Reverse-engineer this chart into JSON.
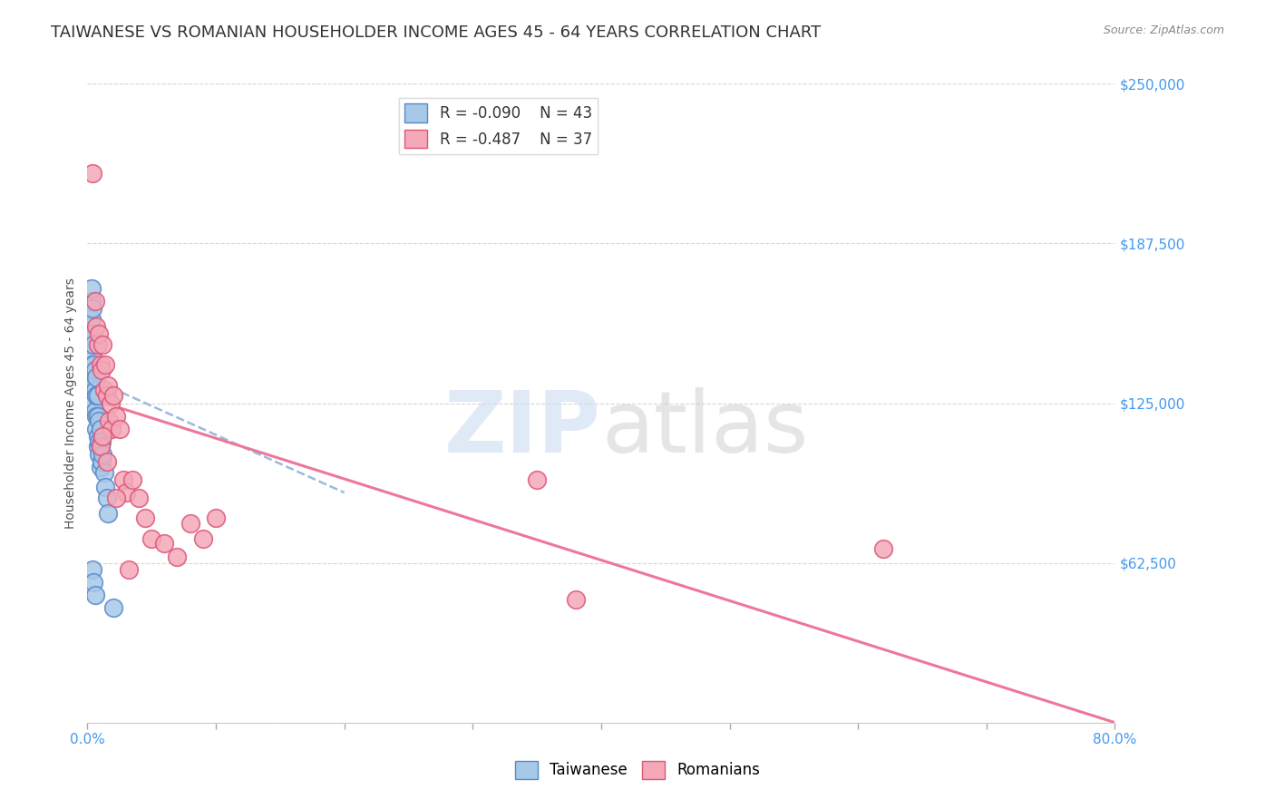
{
  "title": "TAIWANESE VS ROMANIAN HOUSEHOLDER INCOME AGES 45 - 64 YEARS CORRELATION CHART",
  "source": "Source: ZipAtlas.com",
  "ylabel": "Householder Income Ages 45 - 64 years",
  "xlim": [
    0.0,
    0.8
  ],
  "ylim": [
    0,
    250000
  ],
  "yticks": [
    0,
    62500,
    125000,
    187500,
    250000
  ],
  "ytick_labels": [
    "",
    "$62,500",
    "$125,000",
    "$187,500",
    "$250,000"
  ],
  "xtick_labels": [
    "0.0%",
    "",
    "",
    "",
    "",
    "",
    "",
    "",
    "80.0%"
  ],
  "taiwanese_color": "#a8c8e8",
  "romanian_color": "#f4a8b8",
  "taiwanese_edge": "#5588cc",
  "romanian_edge": "#dd5577",
  "trendline_tw_color": "#99bbdd",
  "trendline_ro_color": "#ee7799",
  "R_taiwanese": -0.09,
  "N_taiwanese": 43,
  "R_romanian": -0.487,
  "N_romanian": 37,
  "legend_label_taiwanese": "Taiwanese",
  "legend_label_romanian": "Romanians",
  "title_fontsize": 13,
  "axis_label_fontsize": 10,
  "tick_label_color": "#4499ee",
  "background_color": "#ffffff",
  "taiwanese_x": [
    0.002,
    0.002,
    0.003,
    0.003,
    0.003,
    0.004,
    0.004,
    0.004,
    0.004,
    0.004,
    0.005,
    0.005,
    0.005,
    0.005,
    0.006,
    0.006,
    0.006,
    0.007,
    0.007,
    0.007,
    0.007,
    0.008,
    0.008,
    0.008,
    0.008,
    0.009,
    0.009,
    0.009,
    0.01,
    0.01,
    0.01,
    0.011,
    0.011,
    0.012,
    0.013,
    0.014,
    0.015,
    0.016,
    0.003,
    0.004,
    0.005,
    0.006,
    0.02
  ],
  "taiwanese_y": [
    155000,
    148000,
    165000,
    158000,
    150000,
    162000,
    152000,
    145000,
    140000,
    135000,
    148000,
    140000,
    132000,
    125000,
    138000,
    130000,
    122000,
    135000,
    128000,
    120000,
    115000,
    128000,
    120000,
    112000,
    108000,
    118000,
    110000,
    105000,
    115000,
    108000,
    100000,
    110000,
    102000,
    105000,
    98000,
    92000,
    88000,
    82000,
    170000,
    60000,
    55000,
    50000,
    45000
  ],
  "romanian_x": [
    0.004,
    0.006,
    0.007,
    0.008,
    0.009,
    0.01,
    0.011,
    0.012,
    0.013,
    0.014,
    0.015,
    0.016,
    0.017,
    0.018,
    0.019,
    0.02,
    0.022,
    0.025,
    0.028,
    0.03,
    0.035,
    0.04,
    0.045,
    0.05,
    0.06,
    0.07,
    0.08,
    0.09,
    0.1,
    0.62,
    0.01,
    0.015,
    0.35,
    0.38,
    0.012,
    0.022,
    0.032
  ],
  "romanian_y": [
    215000,
    165000,
    155000,
    148000,
    152000,
    140000,
    138000,
    148000,
    130000,
    140000,
    128000,
    132000,
    118000,
    125000,
    115000,
    128000,
    120000,
    115000,
    95000,
    90000,
    95000,
    88000,
    80000,
    72000,
    70000,
    65000,
    78000,
    72000,
    80000,
    68000,
    108000,
    102000,
    95000,
    48000,
    112000,
    88000,
    60000
  ],
  "tw_trend_x0": 0.001,
  "tw_trend_x1": 0.2,
  "tw_trend_y0": 135000,
  "tw_trend_y1": 90000,
  "ro_trend_x0": 0.001,
  "ro_trend_x1": 0.8,
  "ro_trend_y0": 127000,
  "ro_trend_y1": 0
}
